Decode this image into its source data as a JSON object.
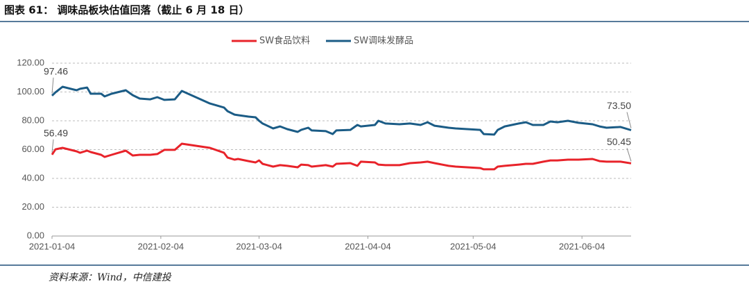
{
  "title": "图表 61：  调味品板块估值回落（截止 6 月 18 日）",
  "source": "资料来源：Wind，中信建投",
  "chart_data": {
    "type": "line",
    "x": [
      "2021-01-04",
      "2021-01-05",
      "2021-01-07",
      "2021-01-11",
      "2021-01-12",
      "2021-01-14",
      "2021-01-15",
      "2021-01-18",
      "2021-01-19",
      "2021-01-21",
      "2021-01-25",
      "2021-01-27",
      "2021-01-29",
      "2021-02-01",
      "2021-02-03",
      "2021-02-05",
      "2021-02-08",
      "2021-02-10",
      "2021-02-18",
      "2021-02-22",
      "2021-02-23",
      "2021-02-25",
      "2021-02-26",
      "2021-03-01",
      "2021-03-03",
      "2021-03-04",
      "2021-03-05",
      "2021-03-08",
      "2021-03-10",
      "2021-03-12",
      "2021-03-15",
      "2021-03-16",
      "2021-03-18",
      "2021-03-19",
      "2021-03-23",
      "2021-03-25",
      "2021-03-26",
      "2021-03-30",
      "2021-04-01",
      "2021-04-02",
      "2021-04-06",
      "2021-04-07",
      "2021-04-09",
      "2021-04-13",
      "2021-04-16",
      "2021-04-19",
      "2021-04-21",
      "2021-04-23",
      "2021-04-27",
      "2021-04-29",
      "2021-05-06",
      "2021-05-07",
      "2021-05-10",
      "2021-05-11",
      "2021-05-13",
      "2021-05-17",
      "2021-05-19",
      "2021-05-21",
      "2021-05-24",
      "2021-05-26",
      "2021-05-28",
      "2021-05-31",
      "2021-06-03",
      "2021-06-07",
      "2021-06-09",
      "2021-06-11",
      "2021-06-15",
      "2021-06-18"
    ],
    "series": [
      {
        "name": "SW食品饮料",
        "color": "#e8232a",
        "values": [
          56.49,
          60.2,
          61.2,
          58.8,
          57.8,
          59.3,
          58.3,
          56.4,
          54.9,
          56.4,
          59.3,
          55.9,
          56.4,
          56.4,
          56.9,
          59.8,
          59.8,
          64.1,
          61.2,
          57.8,
          54.5,
          53.0,
          53.5,
          52.0,
          51.1,
          52.5,
          50.1,
          48.2,
          49.2,
          48.7,
          47.7,
          49.6,
          49.2,
          48.2,
          49.2,
          48.2,
          50.1,
          50.6,
          48.7,
          51.6,
          51.1,
          49.6,
          49.2,
          49.2,
          50.6,
          51.1,
          51.6,
          50.6,
          48.7,
          48.2,
          47.2,
          46.3,
          46.3,
          48.2,
          48.7,
          49.6,
          50.1,
          50.1,
          51.6,
          52.5,
          52.5,
          53.0,
          53.0,
          53.5,
          52.0,
          51.6,
          51.6,
          50.45
        ],
        "value_labels": [
          "56.49",
          null,
          null,
          null,
          null,
          null,
          null,
          null,
          null,
          null,
          null,
          null,
          null,
          null,
          null,
          null,
          null,
          null,
          null,
          null,
          null,
          null,
          null,
          null,
          null,
          null,
          null,
          null,
          null,
          null,
          null,
          null,
          null,
          null,
          null,
          null,
          null,
          null,
          null,
          null,
          null,
          null,
          null,
          null,
          null,
          null,
          null,
          null,
          null,
          null,
          null,
          null,
          null,
          null,
          null,
          null,
          null,
          null,
          null,
          null,
          null,
          null,
          null,
          null,
          null,
          null,
          null,
          "50.45"
        ]
      },
      {
        "name": "SW调味发酵品",
        "color": "#1b5c86",
        "values": [
          97.46,
          99.8,
          103.6,
          101.2,
          102.2,
          103.1,
          98.8,
          98.8,
          96.9,
          98.8,
          101.2,
          97.8,
          95.4,
          94.9,
          96.4,
          94.5,
          94.9,
          100.7,
          92.0,
          89.2,
          86.7,
          84.3,
          83.9,
          82.9,
          82.4,
          80.0,
          78.1,
          74.7,
          76.1,
          74.2,
          72.3,
          73.7,
          75.2,
          73.3,
          72.8,
          70.8,
          73.3,
          73.7,
          77.1,
          76.1,
          77.1,
          80.0,
          78.1,
          77.6,
          78.1,
          77.1,
          79.0,
          76.6,
          75.2,
          74.7,
          73.7,
          70.8,
          70.4,
          73.7,
          76.1,
          78.1,
          79.0,
          77.1,
          77.1,
          79.5,
          79.0,
          80.0,
          78.6,
          77.6,
          76.1,
          75.2,
          75.7,
          73.5
        ],
        "value_labels": [
          "97.46",
          null,
          null,
          null,
          null,
          null,
          null,
          null,
          null,
          null,
          null,
          null,
          null,
          null,
          null,
          null,
          null,
          null,
          null,
          null,
          null,
          null,
          null,
          null,
          null,
          null,
          null,
          null,
          null,
          null,
          null,
          null,
          null,
          null,
          null,
          null,
          null,
          null,
          null,
          null,
          null,
          null,
          null,
          null,
          null,
          null,
          null,
          null,
          null,
          null,
          null,
          null,
          null,
          null,
          null,
          null,
          null,
          null,
          null,
          null,
          null,
          null,
          null,
          null,
          null,
          null,
          null,
          "73.50"
        ]
      }
    ],
    "xlim": [
      "2021-01-04",
      "2021-06-18"
    ],
    "xticks": [
      "2021-01-04",
      "2021-02-04",
      "2021-03-04",
      "2021-04-04",
      "2021-05-04",
      "2021-06-04"
    ],
    "ylim": [
      0,
      120
    ],
    "yticks": [
      {
        "value": 0,
        "label": "0.00"
      },
      {
        "value": 20,
        "label": "20.00"
      },
      {
        "value": 40,
        "label": "40.00"
      },
      {
        "value": 60,
        "label": "60.00"
      },
      {
        "value": 80,
        "label": "80.00"
      },
      {
        "value": 100,
        "label": "100.00"
      },
      {
        "value": 120,
        "label": "120.00"
      }
    ],
    "grid": true,
    "legend": "top"
  }
}
